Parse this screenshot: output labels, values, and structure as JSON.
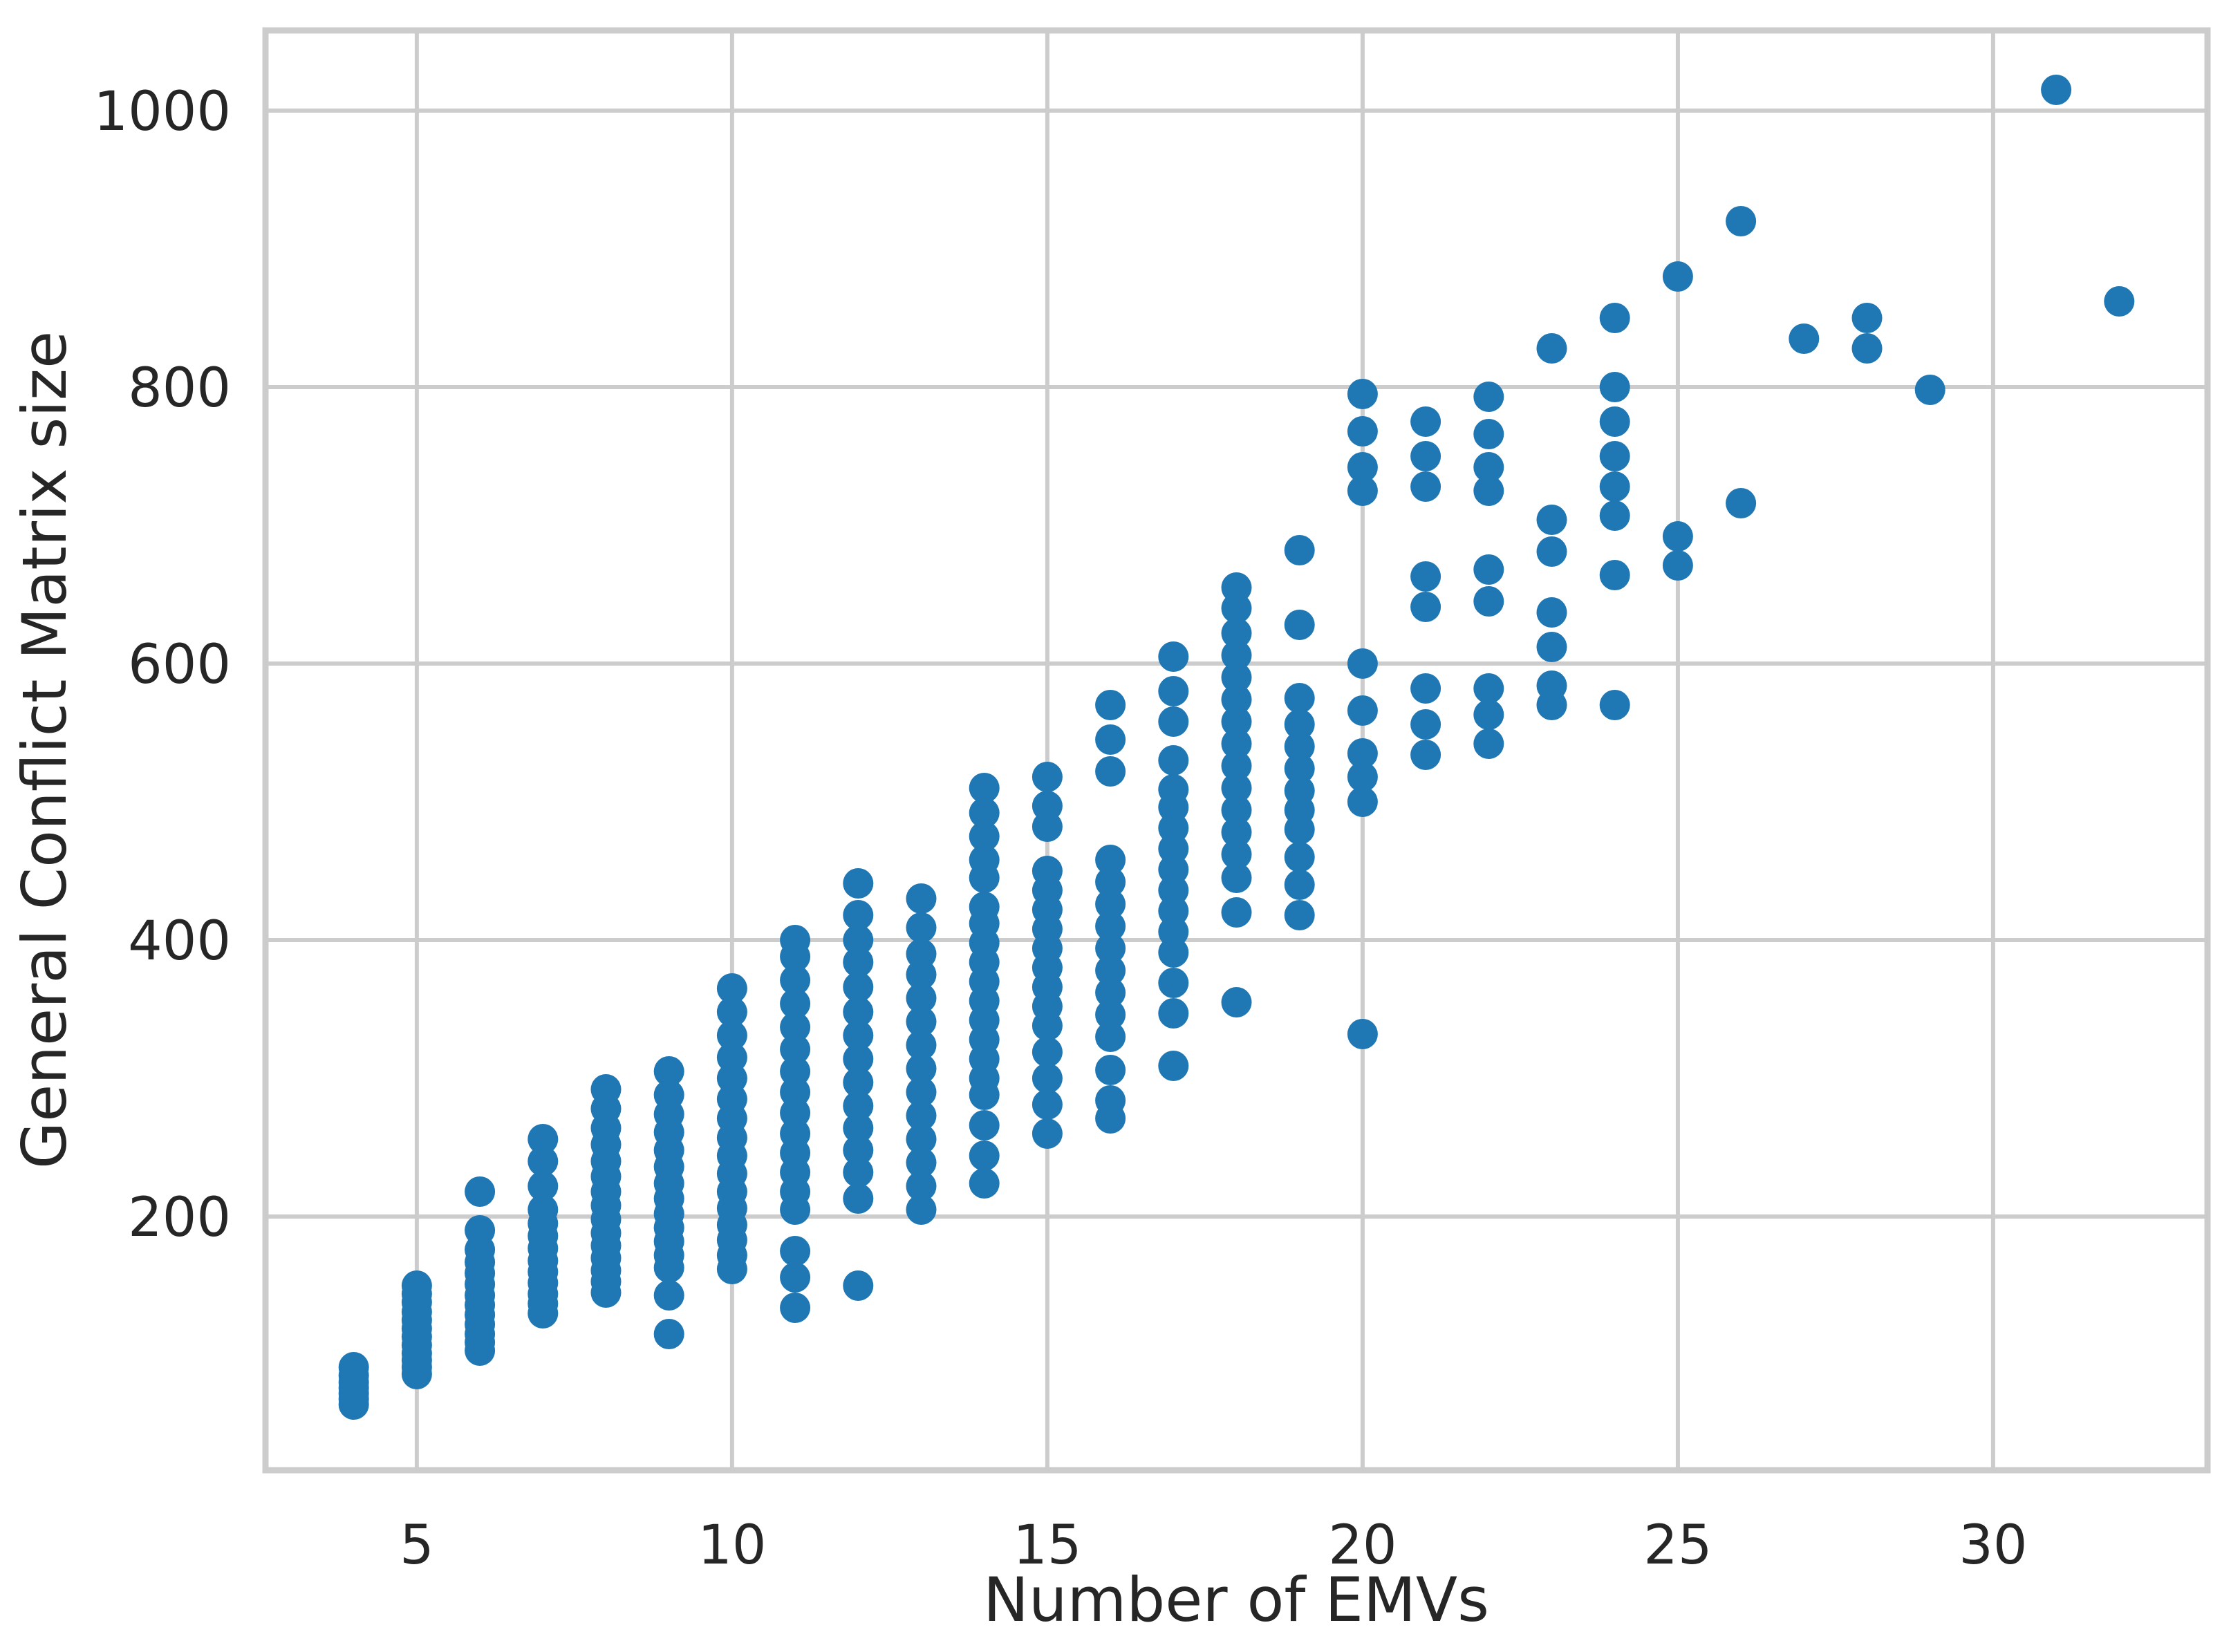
{
  "chart_data": {
    "type": "scatter",
    "title": "",
    "xlabel": "Number of EMVs",
    "ylabel": "General Conflict Matrix size",
    "xlim": [
      2.6,
      33.4
    ],
    "ylim": [
      16.5,
      1058
    ],
    "x_ticks": [
      5,
      10,
      15,
      20,
      25,
      30
    ],
    "y_ticks": [
      200,
      400,
      600,
      800,
      1000
    ],
    "grid": "on",
    "legend": "none",
    "marker_color": "#1f77b4",
    "marker_radius": 22,
    "grid_color": "#cccccc",
    "spine_color": "#cccccc",
    "series": [
      {
        "x": 4,
        "values": [
          64,
          68,
          72,
          76,
          80,
          85,
          91
        ]
      },
      {
        "x": 5,
        "values": [
          86,
          91,
          96,
          101,
          107,
          113,
          119,
          125,
          131,
          138,
          144,
          150
        ]
      },
      {
        "x": 6,
        "values": [
          103,
          109,
          115,
          122,
          129,
          136,
          143,
          151,
          159,
          167,
          176,
          190,
          218
        ]
      },
      {
        "x": 7,
        "values": [
          130,
          137,
          144,
          152,
          160,
          168,
          177,
          186,
          195,
          205,
          222,
          240,
          256
        ]
      },
      {
        "x": 8,
        "values": [
          145,
          153,
          161,
          170,
          179,
          188,
          198,
          208,
          218,
          229,
          240,
          252,
          264,
          278,
          292
        ]
      },
      {
        "x": 9,
        "values": [
          115,
          143,
          163,
          172,
          182,
          192,
          202,
          213,
          224,
          236,
          248,
          261,
          274,
          288,
          305
        ]
      },
      {
        "x": 10,
        "values": [
          162,
          172,
          183,
          194,
          206,
          218,
          231,
          244,
          257,
          271,
          285,
          300,
          315,
          331,
          348,
          365
        ]
      },
      {
        "x": 11,
        "values": [
          134,
          156,
          175,
          205,
          218,
          232,
          246,
          260,
          275,
          290,
          305,
          321,
          337,
          354,
          371,
          388,
          400
        ]
      },
      {
        "x": 12,
        "values": [
          150,
          213,
          232,
          248,
          264,
          280,
          297,
          314,
          331,
          348,
          366,
          384,
          400,
          418,
          441
        ]
      },
      {
        "x": 13,
        "values": [
          205,
          222,
          239,
          256,
          273,
          290,
          307,
          324,
          341,
          358,
          375,
          390,
          409,
          430
        ]
      },
      {
        "x": 14,
        "values": [
          224,
          244,
          266,
          288,
          300,
          314,
          328,
          342,
          356,
          370,
          384,
          398,
          412,
          424,
          445,
          458,
          475,
          492,
          510
        ]
      },
      {
        "x": 15,
        "values": [
          260,
          281,
          300,
          319,
          338,
          352,
          366,
          380,
          394,
          408,
          422,
          436,
          450,
          482,
          497,
          518
        ]
      },
      {
        "x": 16,
        "values": [
          271,
          284,
          306,
          330,
          346,
          362,
          378,
          394,
          410,
          426,
          442,
          458,
          522,
          545,
          570
        ]
      },
      {
        "x": 17,
        "values": [
          309,
          347,
          369,
          391,
          406,
          421,
          436,
          451,
          466,
          481,
          496,
          509,
          530,
          558,
          580,
          605
        ]
      },
      {
        "x": 18,
        "values": [
          355,
          420,
          445,
          462,
          478,
          494,
          510,
          526,
          542,
          558,
          574,
          590,
          606,
          622,
          640,
          655
        ]
      },
      {
        "x": 19,
        "values": [
          418,
          440,
          460,
          480,
          494,
          508,
          524,
          540,
          556,
          575,
          628,
          682
        ]
      },
      {
        "x": 20,
        "values": [
          332,
          500,
          518,
          535,
          566,
          600,
          725,
          742,
          768,
          795
        ]
      },
      {
        "x": 21,
        "values": [
          534,
          556,
          582,
          641,
          663,
          728,
          750,
          775
        ]
      },
      {
        "x": 22,
        "values": [
          542,
          563,
          582,
          645,
          668,
          725,
          742,
          766,
          793
        ]
      },
      {
        "x": 23,
        "values": [
          570,
          584,
          612,
          637,
          681,
          704,
          828
        ]
      },
      {
        "x": 24,
        "values": [
          570,
          664,
          707,
          728,
          750,
          775,
          800,
          850
        ]
      },
      {
        "x": 25,
        "values": [
          671,
          692,
          880
        ]
      },
      {
        "x": 26,
        "values": [
          716,
          920
        ]
      },
      {
        "x": 27,
        "values": [
          835
        ]
      },
      {
        "x": 28,
        "values": [
          828,
          850
        ]
      },
      {
        "x": 29,
        "values": [
          798
        ]
      },
      {
        "x": 31,
        "values": [
          1015
        ]
      },
      {
        "x": 32,
        "values": [
          862
        ]
      }
    ]
  }
}
